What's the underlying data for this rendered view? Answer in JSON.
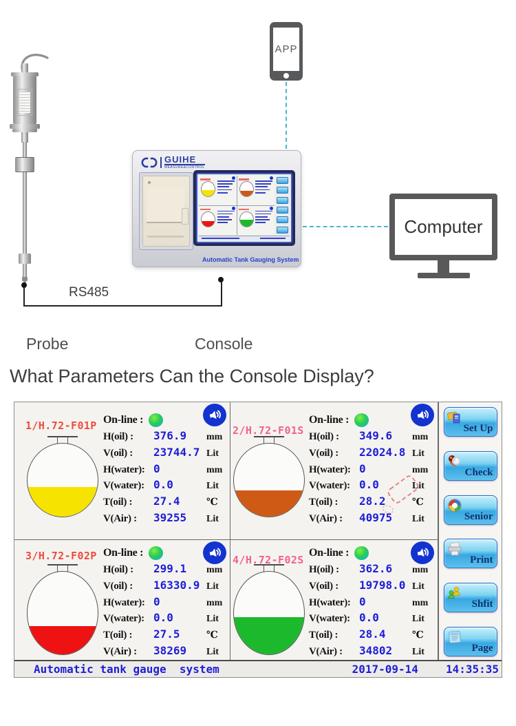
{
  "diagram": {
    "app_label": "APP",
    "computer_label": "Computer",
    "rs485_label": "RS485",
    "probe_label": "Probe",
    "console_label": "Console",
    "console_brand": "GUIHE",
    "console_brand_sub": "MEASURE&CONTROL",
    "console_footer": "Automatic Tank Gauging System"
  },
  "heading": "What Parameters Can the Console Display?",
  "display": {
    "value_color": "#1e1ed6",
    "online_label": "On-line :",
    "row_labels": [
      "H(oil) :",
      "V(oil) :",
      "H(water):",
      "V(water):",
      "T(oil) :",
      "V(Air) :"
    ],
    "row_units": [
      "mm",
      "Lit",
      "mm",
      "Lit",
      "℃",
      "Lit"
    ],
    "panels": [
      {
        "name": "1/H.72-F01P",
        "name_color": "#ef4b3e",
        "fill_color": "#f6e400",
        "fill_percent": 41,
        "values": [
          "376.9",
          "23744.7",
          "0",
          "0.0",
          "27.4",
          "39255"
        ]
      },
      {
        "name": "2/H.72-F01S",
        "name_color": "#f2638c",
        "fill_color": "#cf5a16",
        "fill_percent": 36,
        "values": [
          "349.6",
          "22024.8",
          "0",
          "0.0",
          "28.2",
          "40975"
        ]
      },
      {
        "name": "3/H.72-F02P",
        "name_color": "#ef4b3e",
        "fill_color": "#ee1212",
        "fill_percent": 34,
        "values": [
          "299.1",
          "16330.9",
          "0",
          "0.0",
          "27.5",
          "38269"
        ]
      },
      {
        "name": "4/H.72-F02S",
        "name_color": "#f2638c",
        "fill_color": "#1db92c",
        "fill_percent": 45,
        "values": [
          "362.6",
          "19798.0",
          "0",
          "0.0",
          "28.4",
          "34802"
        ]
      }
    ],
    "buttons": [
      "Set Up",
      "Check",
      "Senior",
      "Print",
      "Shfit",
      "Page"
    ],
    "status": {
      "system": "Automatic tank gauge  system",
      "date": "2017-09-14",
      "time": "14:35:35"
    }
  }
}
